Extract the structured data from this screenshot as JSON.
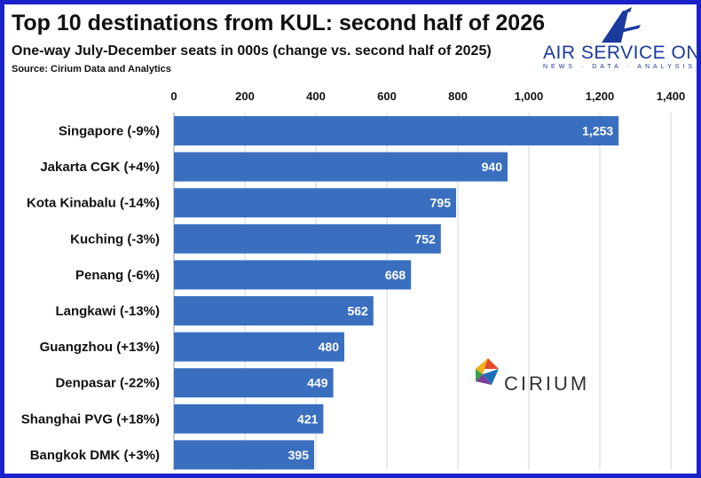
{
  "header": {
    "title": "Top 10 destinations from KUL: second half of 2026",
    "subtitle": "One-way July-December seats in 000s (change vs. second half of 2025)",
    "source": "Source: Cirium Data and Analytics"
  },
  "branding": {
    "name": "AIR SERVICE ONE",
    "tagline": "NEWS · DATA · ANALYSIS",
    "partner": "CIRIUM",
    "frame_color": "#1a22c8",
    "brand_color": "#1a3a9c"
  },
  "chart_data": {
    "type": "bar",
    "orientation": "horizontal",
    "categories": [
      "Singapore (-9%)",
      "Jakarta CGK (+4%)",
      "Kota Kinabalu (-14%)",
      "Kuching (-3%)",
      "Penang (-6%)",
      "Langkawi (-13%)",
      "Guangzhou (+13%)",
      "Denpasar (-22%)",
      "Shanghai PVG (+18%)",
      "Bangkok DMK (+3%)"
    ],
    "values": [
      1253,
      940,
      795,
      752,
      668,
      562,
      480,
      449,
      421,
      395
    ],
    "value_labels": [
      "1,253",
      "940",
      "795",
      "752",
      "668",
      "562",
      "480",
      "449",
      "421",
      "395"
    ],
    "xlim": [
      0,
      1400
    ],
    "xticks": [
      0,
      200,
      400,
      600,
      800,
      1000,
      1200,
      1400
    ],
    "xtick_labels": [
      "0",
      "200",
      "400",
      "600",
      "800",
      "1,000",
      "1,200",
      "1,400"
    ],
    "axis_position": "top",
    "grid": true,
    "bar_color": "#3a6fc0"
  }
}
